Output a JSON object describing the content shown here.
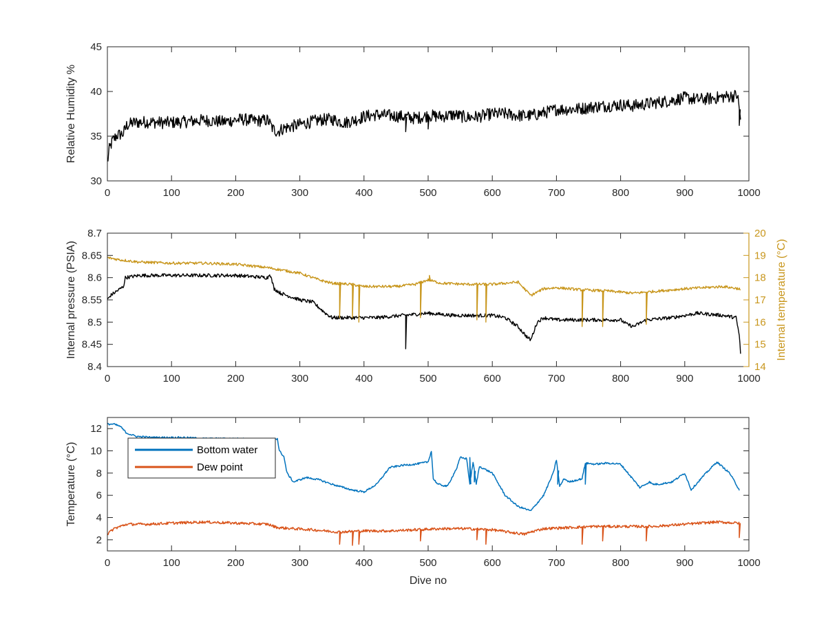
{
  "chart_data": [
    {
      "type": "line",
      "id": "humidity",
      "xlabel": "",
      "ylabel": "Relative Humidity %",
      "xlim": [
        0,
        1000
      ],
      "ylim": [
        30,
        45
      ],
      "xticks": [
        "0",
        "100",
        "200",
        "300",
        "400",
        "500",
        "600",
        "700",
        "800",
        "900",
        "1000"
      ],
      "yticks": [
        "30",
        "35",
        "40",
        "45"
      ],
      "grid": false,
      "series": [
        {
          "name": "",
          "color": "#000000",
          "noise": 0.7,
          "x": [
            0,
            3,
            8,
            15,
            25,
            30,
            40,
            60,
            90,
            120,
            150,
            180,
            210,
            230,
            250,
            258,
            265,
            275,
            300,
            330,
            350,
            370,
            390,
            400,
            420,
            440,
            460,
            480,
            500,
            520,
            540,
            560,
            580,
            600,
            620,
            640,
            660,
            680,
            700,
            720,
            740,
            760,
            780,
            800,
            820,
            840,
            860,
            880,
            900,
            920,
            940,
            960,
            975,
            982,
            985,
            987
          ],
          "y": [
            32,
            33.5,
            34.5,
            35.1,
            35.3,
            36.2,
            36.5,
            36.6,
            36.5,
            36.6,
            36.8,
            36.6,
            36.9,
            36.7,
            36.8,
            35.8,
            35.5,
            35.9,
            36.3,
            36.8,
            36.9,
            36.5,
            36.9,
            37.2,
            37.4,
            37.3,
            37.2,
            37,
            37.3,
            37.2,
            37.4,
            37.1,
            37.2,
            37.5,
            37.5,
            37.3,
            37.3,
            37.6,
            38,
            38,
            38.1,
            38.3,
            38.4,
            38.5,
            38.4,
            38.6,
            38.8,
            39,
            39.3,
            39.1,
            39.2,
            39.4,
            39.5,
            39.6,
            38,
            37
          ],
          "spikes": [
            [
              465,
              35.5
            ],
            [
              500,
              35.8
            ],
            [
              985,
              36.2
            ]
          ]
        }
      ]
    },
    {
      "type": "line",
      "id": "pressure",
      "xlabel": "",
      "ylabel": "Internal pressure (PSIA)",
      "ylabel_right": "Internal temperature (°C)",
      "xlim": [
        0,
        1000
      ],
      "ylim": [
        8.4,
        8.7
      ],
      "ylim_right": [
        14,
        20
      ],
      "xticks": [
        "0",
        "100",
        "200",
        "300",
        "400",
        "500",
        "600",
        "700",
        "800",
        "900",
        "1000"
      ],
      "yticks": [
        "8.4",
        "8.45",
        "8.5",
        "8.55",
        "8.6",
        "8.65",
        "8.7"
      ],
      "yticks_right": [
        "14",
        "15",
        "16",
        "17",
        "18",
        "19",
        "20"
      ],
      "grid": false,
      "series": [
        {
          "name": "",
          "axis": "left",
          "color": "#000000",
          "noise": 0.004,
          "x": [
            0,
            5,
            15,
            25,
            28,
            50,
            100,
            150,
            200,
            250,
            253,
            260,
            270,
            280,
            300,
            320,
            340,
            350,
            380,
            420,
            460,
            500,
            540,
            580,
            600,
            620,
            640,
            655,
            660,
            670,
            680,
            700,
            740,
            760,
            800,
            810,
            820,
            840,
            880,
            920,
            960,
            980,
            985,
            987
          ],
          "y": [
            8.55,
            8.56,
            8.57,
            8.58,
            8.6,
            8.605,
            8.605,
            8.605,
            8.605,
            8.6,
            8.61,
            8.575,
            8.565,
            8.56,
            8.55,
            8.545,
            8.52,
            8.51,
            8.51,
            8.51,
            8.515,
            8.52,
            8.515,
            8.515,
            8.515,
            8.51,
            8.49,
            8.465,
            8.46,
            8.5,
            8.51,
            8.505,
            8.505,
            8.505,
            8.505,
            8.495,
            8.49,
            8.505,
            8.51,
            8.52,
            8.515,
            8.51,
            8.47,
            8.43
          ],
          "spikes": [
            [
              465,
              8.44
            ]
          ]
        },
        {
          "name": "",
          "axis": "right",
          "color": "#c8961c",
          "noise": 0.06,
          "x": [
            0,
            20,
            50,
            100,
            150,
            200,
            250,
            300,
            330,
            350,
            380,
            400,
            450,
            480,
            500,
            520,
            560,
            600,
            640,
            660,
            680,
            700,
            740,
            780,
            820,
            860,
            900,
            960,
            985,
            987
          ],
          "y": [
            18.9,
            18.8,
            18.7,
            18.65,
            18.65,
            18.6,
            18.45,
            18.2,
            17.9,
            17.75,
            17.7,
            17.6,
            17.6,
            17.7,
            17.9,
            17.75,
            17.7,
            17.7,
            17.8,
            17.2,
            17.5,
            17.55,
            17.45,
            17.4,
            17.3,
            17.4,
            17.5,
            17.6,
            17.5,
            17.4
          ],
          "spikes": [
            [
              362,
              16.2
            ],
            [
              382,
              16.2
            ],
            [
              392,
              16
            ],
            [
              488,
              16.2
            ],
            [
              502,
              18.1
            ],
            [
              576,
              16.1
            ],
            [
              590,
              16.0
            ],
            [
              740,
              15.8
            ],
            [
              772,
              15.8
            ],
            [
              840,
              15.9
            ]
          ]
        }
      ]
    },
    {
      "type": "line",
      "id": "temperature",
      "xlabel": "Dive no",
      "ylabel": "Temperature (°C)",
      "xlim": [
        0,
        1000
      ],
      "ylim": [
        1,
        13
      ],
      "xticks": [
        "0",
        "100",
        "200",
        "300",
        "400",
        "500",
        "600",
        "700",
        "800",
        "900",
        "1000"
      ],
      "yticks": [
        "2",
        "4",
        "6",
        "8",
        "10",
        "12"
      ],
      "grid": false,
      "legend": "top-left",
      "series": [
        {
          "name": "Bottom water",
          "color": "#0072bd",
          "noise": 0.08,
          "x": [
            0,
            10,
            20,
            30,
            45,
            70,
            100,
            120,
            150,
            200,
            250,
            265,
            268,
            275,
            280,
            290,
            310,
            330,
            350,
            380,
            400,
            420,
            440,
            460,
            480,
            500,
            505,
            508,
            515,
            530,
            545,
            550,
            560,
            565,
            570,
            575,
            580,
            600,
            620,
            640,
            660,
            680,
            695,
            700,
            705,
            712,
            720,
            740,
            745,
            760,
            780,
            800,
            830,
            845,
            850,
            860,
            880,
            900,
            910,
            930,
            950,
            970,
            985
          ],
          "y": [
            12.4,
            12.4,
            12.2,
            11.6,
            11.3,
            11.2,
            11.2,
            11.2,
            11.1,
            11.1,
            11.0,
            11.1,
            10.0,
            9.5,
            8.0,
            7.2,
            7.6,
            7.4,
            7.0,
            6.5,
            6.3,
            7.0,
            8.5,
            8.7,
            8.8,
            9.0,
            10.0,
            7.5,
            7.0,
            6.8,
            8.5,
            9.4,
            9.3,
            7.0,
            9.0,
            7.0,
            8.6,
            8.0,
            6.0,
            5.0,
            4.6,
            6.0,
            8.0,
            9.2,
            6.8,
            7.5,
            7.2,
            7.5,
            8.9,
            8.8,
            8.9,
            8.8,
            6.7,
            7.2,
            7.0,
            7.0,
            7.2,
            8.0,
            6.5,
            7.8,
            9.0,
            8.0,
            6.5
          ],
          "spikes": [
            [
              565,
              9.4
            ],
            [
              572,
              7.2
            ],
            [
              702,
              7.0
            ],
            [
              745,
              7.0
            ]
          ]
        },
        {
          "name": "Dew point",
          "color": "#d95319",
          "noise": 0.12,
          "x": [
            0,
            10,
            30,
            60,
            100,
            150,
            200,
            250,
            265,
            290,
            320,
            360,
            400,
            440,
            480,
            520,
            560,
            600,
            650,
            660,
            680,
            720,
            760,
            800,
            850,
            900,
            950,
            985
          ],
          "y": [
            2.5,
            3.0,
            3.4,
            3.4,
            3.5,
            3.6,
            3.5,
            3.4,
            3.1,
            3.0,
            2.9,
            2.7,
            2.8,
            2.8,
            2.9,
            3.0,
            3.0,
            2.9,
            2.5,
            2.7,
            3.0,
            3.1,
            3.2,
            3.2,
            3.2,
            3.4,
            3.6,
            3.5
          ],
          "spikes": [
            [
              362,
              1.6
            ],
            [
              382,
              1.5
            ],
            [
              392,
              1.6
            ],
            [
              488,
              1.9
            ],
            [
              576,
              2.0
            ],
            [
              590,
              1.6
            ],
            [
              740,
              1.6
            ],
            [
              772,
              1.9
            ],
            [
              840,
              1.9
            ],
            [
              985,
              2.2
            ]
          ]
        }
      ]
    }
  ]
}
